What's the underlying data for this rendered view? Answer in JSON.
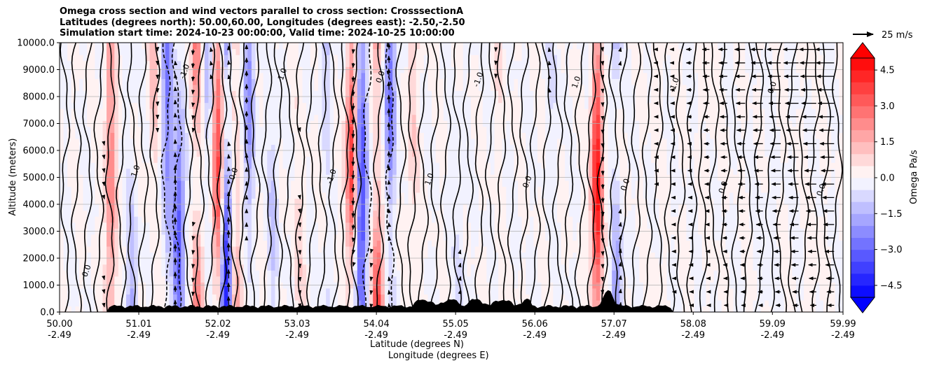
{
  "title": {
    "line1": "Omega cross section and wind vectors parallel to cross section: CrosssectionA",
    "line2": "Latitudes (degrees north): 50.00,60.00, Longitudes (degrees east): -2.50,-2.50",
    "line3": "Simulation start time: 2024-10-23 00:00:00, Valid time: 2024-10-25 10:00:00"
  },
  "reference_vector": {
    "label": "25 m/s"
  },
  "chart_data": {
    "type": "heatmap",
    "title": "Omega cross section and wind vectors parallel to cross section: CrosssectionA",
    "xlabel_line1": "Latitude (degrees N)",
    "xlabel_line2": "Longitude (degrees E)",
    "ylabel": "Altitude (meters)",
    "colorbar_label": "Omega Pa/s",
    "xlim": [
      50.0,
      59.99
    ],
    "ylim": [
      0,
      10000
    ],
    "grid": "horizontal",
    "x_ticks": [
      {
        "lat": "50.00",
        "lon": "-2.49",
        "value": 50.0
      },
      {
        "lat": "51.01",
        "lon": "-2.49",
        "value": 51.01
      },
      {
        "lat": "52.02",
        "lon": "-2.49",
        "value": 52.02
      },
      {
        "lat": "53.03",
        "lon": "-2.49",
        "value": 53.03
      },
      {
        "lat": "54.04",
        "lon": "-2.49",
        "value": 54.04
      },
      {
        "lat": "55.05",
        "lon": "-2.49",
        "value": 55.05
      },
      {
        "lat": "56.06",
        "lon": "-2.49",
        "value": 56.06
      },
      {
        "lat": "57.07",
        "lon": "-2.49",
        "value": 57.07
      },
      {
        "lat": "58.08",
        "lon": "-2.49",
        "value": 58.08
      },
      {
        "lat": "59.09",
        "lon": "-2.49",
        "value": 59.09
      },
      {
        "lat": "59.99",
        "lon": "-2.49",
        "value": 59.99
      }
    ],
    "y_ticks": [
      {
        "label": "0.0",
        "value": 0
      },
      {
        "label": "1000.0",
        "value": 1000
      },
      {
        "label": "2000.0",
        "value": 2000
      },
      {
        "label": "3000.0",
        "value": 3000
      },
      {
        "label": "4000.0",
        "value": 4000
      },
      {
        "label": "5000.0",
        "value": 5000
      },
      {
        "label": "6000.0",
        "value": 6000
      },
      {
        "label": "7000.0",
        "value": 7000
      },
      {
        "label": "8000.0",
        "value": 8000
      },
      {
        "label": "9000.0",
        "value": 9000
      },
      {
        "label": "10000.0",
        "value": 10000
      }
    ],
    "colorbar": {
      "min": -5.0,
      "max": 5.0,
      "step": 0.5,
      "extend": "both",
      "ticks": [
        {
          "label": "4.5",
          "value": 4.5
        },
        {
          "label": "3.0",
          "value": 3.0
        },
        {
          "label": "1.5",
          "value": 1.5
        },
        {
          "label": "0.0",
          "value": 0.0
        },
        {
          "label": "−1.5",
          "value": -1.5
        },
        {
          "label": "−3.0",
          "value": -3.0
        },
        {
          "label": "−4.5",
          "value": -4.5
        }
      ],
      "colors": {
        "neg_max": "#0000ff",
        "zero": "#ffffff",
        "pos_max": "#ff0000",
        "over": "#ff0000",
        "under": "#0000ff"
      }
    },
    "omega_features": [
      {
        "lat": 50.65,
        "omega": 2.4
      },
      {
        "lat": 50.92,
        "omega": -1.6
      },
      {
        "lat": 51.2,
        "omega": 1.2
      },
      {
        "lat": 51.38,
        "omega": -2.6
      },
      {
        "lat": 51.52,
        "omega": -3.4
      },
      {
        "lat": 51.75,
        "omega": 3.2
      },
      {
        "lat": 51.9,
        "omega": -1.8
      },
      {
        "lat": 52.02,
        "omega": 3.6
      },
      {
        "lat": 52.12,
        "omega": -4.6
      },
      {
        "lat": 52.25,
        "omega": 2.8
      },
      {
        "lat": 52.42,
        "omega": -2.2
      },
      {
        "lat": 52.72,
        "omega": -1.1
      },
      {
        "lat": 53.05,
        "omega": 0.8
      },
      {
        "lat": 53.4,
        "omega": -1.3
      },
      {
        "lat": 53.72,
        "omega": 4.0
      },
      {
        "lat": 53.85,
        "omega": -3.8
      },
      {
        "lat": 54.05,
        "omega": 4.2
      },
      {
        "lat": 54.22,
        "omega": -2.9
      },
      {
        "lat": 54.5,
        "omega": 1.0
      },
      {
        "lat": 55.1,
        "omega": -0.6
      },
      {
        "lat": 55.6,
        "omega": 0.5
      },
      {
        "lat": 56.3,
        "omega": -0.7
      },
      {
        "lat": 56.85,
        "omega": 4.8
      },
      {
        "lat": 57.1,
        "omega": -2.0
      },
      {
        "lat": 57.6,
        "omega": 0.7
      },
      {
        "lat": 58.3,
        "omega": 0.3
      },
      {
        "lat": 59.0,
        "omega": -0.3
      },
      {
        "lat": 59.6,
        "omega": 0.4
      }
    ],
    "contour_labels": [
      "0.0",
      "1.0",
      "-1.0",
      "0.0",
      "1.0",
      "-1.0",
      "0.0",
      "1.0",
      "-1.0",
      "0.0",
      "1.0",
      "0.0",
      "-1.0",
      "0.0",
      "0.0",
      "0.0"
    ]
  }
}
